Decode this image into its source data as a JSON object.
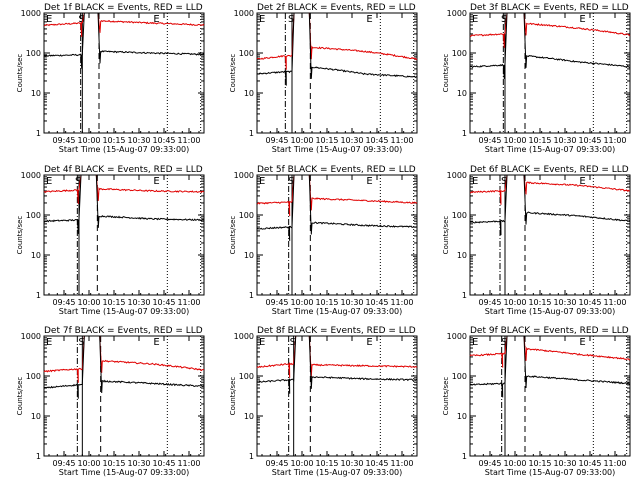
{
  "figure": {
    "xlabel": "Start Time (15-Aug-07 09:33:00)",
    "ylabel": "Counts/sec",
    "x_ticks": [
      "09:45",
      "10:00",
      "10:15",
      "10:30",
      "10:45",
      "11:00"
    ],
    "y_ticks": [
      "1",
      "10",
      "100",
      "1000"
    ],
    "marker_E": "E",
    "marker_S": "S",
    "colors": {
      "events": "#000000",
      "lld": "#e00000",
      "axes": "#000000"
    }
  },
  "chart_data": [
    {
      "type": "line",
      "title": "Det 1f BLACK = Events, RED = LLD",
      "y_scale": "log",
      "ylim": [
        1,
        1000
      ],
      "x_range": [
        "09:33",
        "11:09"
      ],
      "saa_start": "09:56",
      "saa_end": "10:06",
      "vline_dashdot": "09:55",
      "vline_dotted": [
        "10:47",
        "11:07"
      ],
      "series": [
        {
          "values_before": [
            490,
            530,
            560
          ],
          "values_after": [
            640,
            560,
            500
          ]
        },
        {
          "values_before": [
            85,
            88,
            90
          ],
          "values_after": [
            110,
            100,
            92
          ]
        }
      ]
    },
    {
      "type": "line",
      "title": "Det 2f BLACK = Events, RED = LLD",
      "y_scale": "log",
      "ylim": [
        1,
        1000
      ],
      "x_range": [
        "09:33",
        "11:09"
      ],
      "saa_start": "09:54",
      "saa_end": "10:05",
      "vline_dashdot": "09:50",
      "vline_dotted": [
        "10:47",
        "11:07"
      ],
      "series": [
        {
          "values_before": [
            70,
            78,
            85
          ],
          "values_after": [
            140,
            110,
            70
          ]
        },
        {
          "values_before": [
            30,
            32,
            34
          ],
          "values_after": [
            45,
            30,
            25
          ]
        }
      ]
    },
    {
      "type": "line",
      "title": "Det 3f BLACK = Events, RED = LLD",
      "y_scale": "log",
      "ylim": [
        1,
        1000
      ],
      "x_range": [
        "09:33",
        "11:09"
      ],
      "saa_start": "09:54",
      "saa_end": "10:06",
      "vline_dashdot": "09:53",
      "vline_dotted": [
        "10:47",
        "11:07"
      ],
      "series": [
        {
          "values_before": [
            270,
            280,
            300
          ],
          "values_after": [
            550,
            420,
            280
          ]
        },
        {
          "values_before": [
            45,
            48,
            50
          ],
          "values_after": [
            85,
            60,
            45
          ]
        }
      ]
    },
    {
      "type": "line",
      "title": "Det 4f BLACK = Events, RED = LLD",
      "y_scale": "log",
      "ylim": [
        1,
        1000
      ],
      "x_range": [
        "09:33",
        "11:09"
      ],
      "saa_start": "09:54",
      "saa_end": "10:05",
      "vline_dashdot": "09:53",
      "vline_dotted": [
        "10:47",
        "11:07"
      ],
      "series": [
        {
          "values_before": [
            380,
            400,
            420
          ],
          "values_after": [
            450,
            400,
            380
          ]
        },
        {
          "values_before": [
            70,
            73,
            75
          ],
          "values_after": [
            95,
            80,
            75
          ]
        }
      ]
    },
    {
      "type": "line",
      "title": "Det 5f BLACK = Events, RED = LLD",
      "y_scale": "log",
      "ylim": [
        1,
        1000
      ],
      "x_range": [
        "09:33",
        "11:09"
      ],
      "saa_start": "09:54",
      "saa_end": "10:05",
      "vline_dashdot": "09:52",
      "vline_dotted": [
        "10:47",
        "11:07"
      ],
      "series": [
        {
          "values_before": [
            195,
            200,
            210
          ],
          "values_after": [
            260,
            230,
            200
          ]
        },
        {
          "values_before": [
            45,
            48,
            50
          ],
          "values_after": [
            65,
            55,
            50
          ]
        }
      ]
    },
    {
      "type": "line",
      "title": "Det 6f BLACK = Events, RED = LLD",
      "y_scale": "log",
      "ylim": [
        1,
        1000
      ],
      "x_range": [
        "09:33",
        "11:09"
      ],
      "saa_start": "09:54",
      "saa_end": "10:06",
      "vline_dashdot": "09:51",
      "vline_dotted": [
        "10:47",
        "11:07"
      ],
      "series": [
        {
          "values_before": [
            370,
            385,
            400
          ],
          "values_after": [
            650,
            550,
            400
          ]
        },
        {
          "values_before": [
            65,
            68,
            70
          ],
          "values_after": [
            115,
            95,
            70
          ]
        }
      ]
    },
    {
      "type": "line",
      "title": "Det 7f BLACK = Events, RED = LLD",
      "y_scale": "log",
      "ylim": [
        1,
        1000
      ],
      "x_range": [
        "09:33",
        "11:09"
      ],
      "saa_start": "09:56",
      "saa_end": "10:07",
      "vline_dashdot": "09:53",
      "vline_dotted": [
        "10:47",
        "11:07"
      ],
      "series": [
        {
          "values_before": [
            130,
            140,
            150
          ],
          "values_after": [
            240,
            200,
            140
          ]
        },
        {
          "values_before": [
            50,
            55,
            60
          ],
          "values_after": [
            75,
            65,
            55
          ]
        }
      ]
    },
    {
      "type": "line",
      "title": "Det 8f BLACK = Events, RED = LLD",
      "y_scale": "log",
      "ylim": [
        1,
        1000
      ],
      "x_range": [
        "09:33",
        "11:09"
      ],
      "saa_start": "09:55",
      "saa_end": "10:05",
      "vline_dashdot": "09:52",
      "vline_dotted": [
        "10:47",
        "11:07"
      ],
      "series": [
        {
          "values_before": [
            165,
            180,
            200
          ],
          "values_after": [
            190,
            180,
            170
          ]
        },
        {
          "values_before": [
            70,
            75,
            80
          ],
          "values_after": [
            95,
            85,
            80
          ]
        }
      ]
    },
    {
      "type": "line",
      "title": "Det 9f BLACK = Events, RED = LLD",
      "y_scale": "log",
      "ylim": [
        1,
        1000
      ],
      "x_range": [
        "09:33",
        "11:09"
      ],
      "saa_start": "09:54",
      "saa_end": "10:06",
      "vline_dashdot": "09:52",
      "vline_dotted": [
        "10:47",
        "11:07"
      ],
      "series": [
        {
          "values_before": [
            320,
            340,
            360
          ],
          "values_after": [
            480,
            350,
            260
          ]
        },
        {
          "values_before": [
            60,
            63,
            65
          ],
          "values_after": [
            100,
            80,
            65
          ]
        }
      ]
    }
  ]
}
